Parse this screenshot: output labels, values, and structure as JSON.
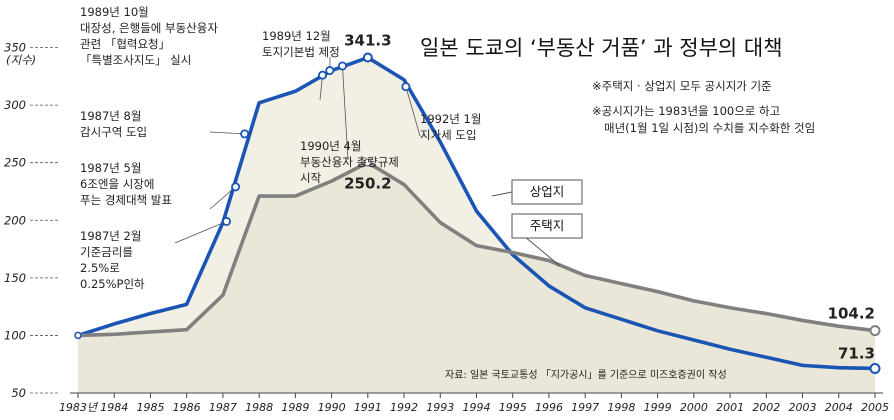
{
  "title": "일본 도쿄의 ‘부동산 거품’ 과 정부의 대책",
  "notes": [
    "※주택지 · 상업지 모두 공시지가 기준",
    "※공시지가는 1983년을 100으로 하고",
    "매년(1월 1일 시점)의 수치를 지수화한 것임"
  ],
  "source": "자료: 일본 국토교통성 「지가공시」를 기준으로 미즈호증권이 작성",
  "chart_data": {
    "type": "line",
    "title": "일본 도쿄의 ‘부동산 거품’ 과 정부의 대책",
    "ylabel": "(지수)",
    "ylim": [
      50,
      360
    ],
    "yticks": [
      50,
      100,
      150,
      200,
      250,
      300,
      350
    ],
    "x_labels": [
      "1983년",
      "1984",
      "1985",
      "1986",
      "1987",
      "1988",
      "1989",
      "1990",
      "1991",
      "1992",
      "1993",
      "1994",
      "1995",
      "1996",
      "1997",
      "1998",
      "1999",
      "2000",
      "2001",
      "2002",
      "2003",
      "2004",
      "2005"
    ],
    "x": [
      1983,
      1984,
      1985,
      1986,
      1987,
      1988,
      1989,
      1990,
      1991,
      1992,
      1993,
      1994,
      1995,
      1996,
      1997,
      1998,
      1999,
      2000,
      2001,
      2002,
      2003,
      2004,
      2005
    ],
    "series": [
      {
        "name": "상업지",
        "color": "#1a55b5",
        "values": [
          100,
          110,
          119,
          127,
          198,
          302,
          312,
          330,
          341.3,
          322,
          268,
          208,
          170,
          143,
          124,
          114,
          104,
          96,
          88,
          81,
          74,
          72,
          71.3
        ],
        "end_label": "71.3"
      },
      {
        "name": "주택지",
        "color": "#808080",
        "values": [
          100,
          101,
          103,
          105,
          135,
          221,
          221,
          234,
          250.2,
          231,
          198,
          178,
          172,
          165,
          152,
          145,
          138,
          130,
          124,
          119,
          113,
          108,
          104.2
        ],
        "end_label": "104.2"
      }
    ],
    "peak_labels": [
      "341.3",
      "250.2"
    ],
    "annotations": [
      {
        "year": 1987.1,
        "value": 199,
        "lines": [
          "1987년 2월",
          "기준금리를",
          "2.5%로",
          "0.25%P인하"
        ]
      },
      {
        "year": 1987.35,
        "value": 229,
        "lines": [
          "1987년 5월",
          "6조엔을 시장에",
          "푸는 경제대책 발표"
        ]
      },
      {
        "year": 1987.6,
        "value": 275,
        "lines": [
          "1987년 8월",
          "감시구역 도입"
        ]
      },
      {
        "year": 1989.75,
        "value": 326,
        "lines": [
          "1989년 10월",
          "대장성, 은행들에 부동산융자",
          "관련 「협력요청」",
          "「특별조사지도」 실시"
        ]
      },
      {
        "year": 1989.95,
        "value": 330,
        "lines": [
          "1989년 12월",
          "토지기본법 제정"
        ]
      },
      {
        "year": 1990.3,
        "value": 334,
        "lines": [
          "1990년 4월",
          "부동산융자 총량규제",
          "시작"
        ]
      },
      {
        "year": 1992.05,
        "value": 316,
        "lines": [
          "1992년 1월",
          "지가세 도입"
        ]
      }
    ]
  }
}
